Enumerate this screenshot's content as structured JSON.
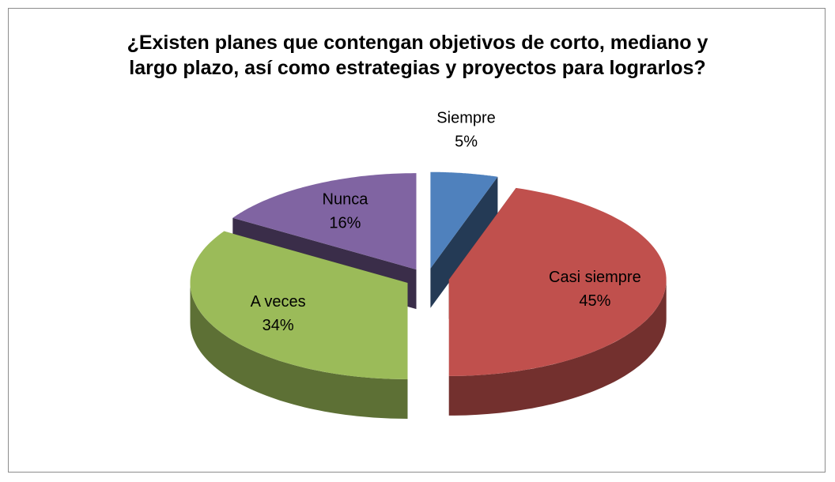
{
  "chart_data": {
    "type": "pie3d",
    "title": "¿Existen planes que contengan objetivos de corto, mediano y largo plazo, así como estrategias y proyectos para lograrlos?",
    "categories": [
      "Siempre",
      "Casi siempre",
      "A veces",
      "Nunca"
    ],
    "values": [
      5,
      45,
      34,
      16
    ],
    "value_labels": [
      "5%",
      "45%",
      "34%",
      "16%"
    ],
    "colors": [
      "#4f81bd",
      "#c0504d",
      "#9bbb59",
      "#8064a2"
    ],
    "exploded": true
  }
}
